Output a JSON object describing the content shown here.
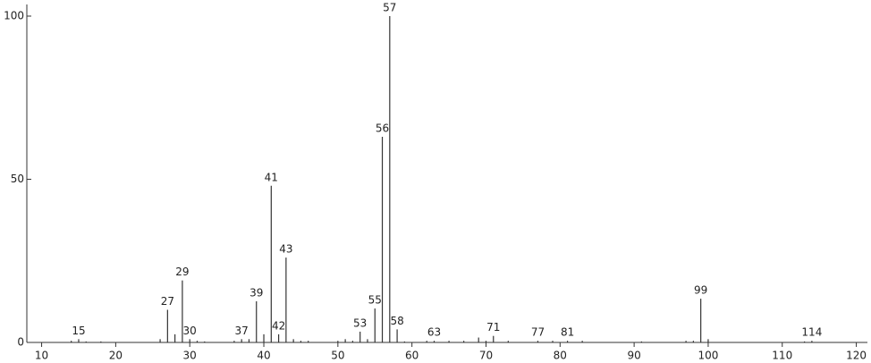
{
  "chart_data": {
    "type": "stem",
    "x": [
      14,
      15,
      16,
      18,
      26,
      27,
      28,
      29,
      30,
      31,
      32,
      36,
      37,
      38,
      39,
      40,
      41,
      42,
      43,
      44,
      45,
      46,
      50,
      51,
      52,
      53,
      54,
      55,
      56,
      57,
      58,
      59,
      62,
      63,
      65,
      67,
      69,
      70,
      71,
      73,
      77,
      79,
      81,
      83,
      91,
      97,
      98,
      99,
      100,
      113,
      114
    ],
    "values": [
      0.5,
      1,
      0.3,
      0.3,
      1,
      10,
      2.5,
      19,
      1,
      0.5,
      0.3,
      0.5,
      1,
      1,
      12.6,
      2.5,
      48,
      2.5,
      26,
      1,
      0.5,
      0.5,
      0.5,
      1,
      0.5,
      3.3,
      1,
      10.4,
      63,
      100,
      4,
      0.3,
      0.5,
      0.5,
      0.5,
      0.5,
      1.5,
      0.5,
      2,
      0.5,
      0.5,
      0.5,
      0.5,
      0.5,
      0.3,
      0.5,
      0.5,
      13.4,
      1,
      0.3,
      0.5
    ],
    "labeled": [
      false,
      true,
      false,
      false,
      false,
      true,
      false,
      true,
      true,
      false,
      false,
      false,
      true,
      false,
      true,
      false,
      true,
      true,
      true,
      false,
      false,
      false,
      false,
      false,
      false,
      true,
      false,
      true,
      true,
      true,
      true,
      false,
      false,
      true,
      false,
      false,
      false,
      false,
      true,
      false,
      true,
      false,
      true,
      false,
      false,
      false,
      false,
      true,
      false,
      false,
      true
    ],
    "color": "#333333",
    "xlim": [
      8,
      121.5
    ],
    "xticks": [
      10,
      20,
      30,
      40,
      50,
      60,
      70,
      80,
      90,
      100,
      110,
      120
    ],
    "ylim": [
      0,
      100
    ],
    "yticks": [
      0,
      50,
      100
    ]
  }
}
